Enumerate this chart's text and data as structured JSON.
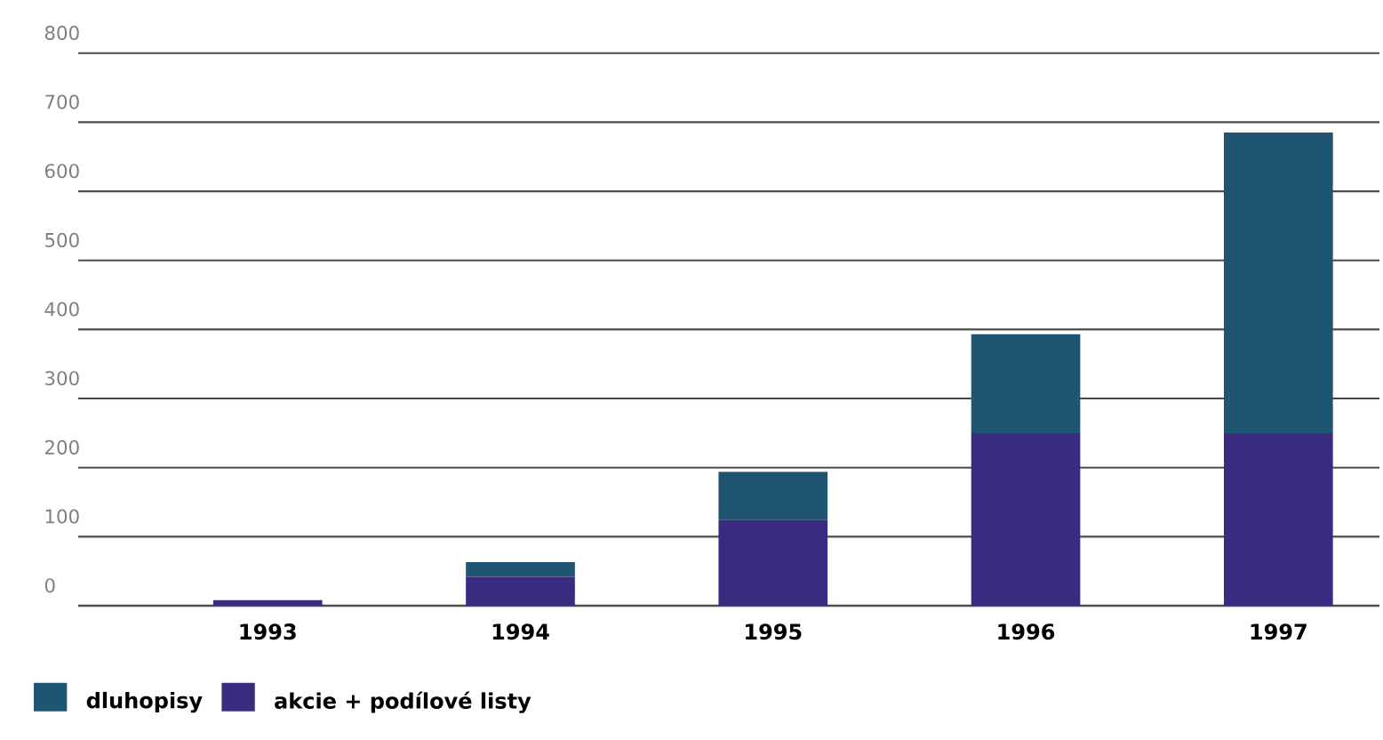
{
  "chart_data": {
    "type": "bar",
    "stacked": true,
    "categories": [
      "1993",
      "1994",
      "1995",
      "1996",
      "1997"
    ],
    "series": [
      {
        "name": "akcie + podílové listy",
        "color": "#3a2a80",
        "values": [
          8,
          42,
          124,
          250,
          250
        ]
      },
      {
        "name": "dluhopisy",
        "color": "#1f5570",
        "values": [
          0,
          21,
          70,
          143,
          435
        ]
      }
    ],
    "ylim": [
      0,
      800
    ],
    "yticks": [
      0,
      100,
      200,
      300,
      400,
      500,
      600,
      700,
      800
    ],
    "grid": "y",
    "legend": "bottom left"
  }
}
